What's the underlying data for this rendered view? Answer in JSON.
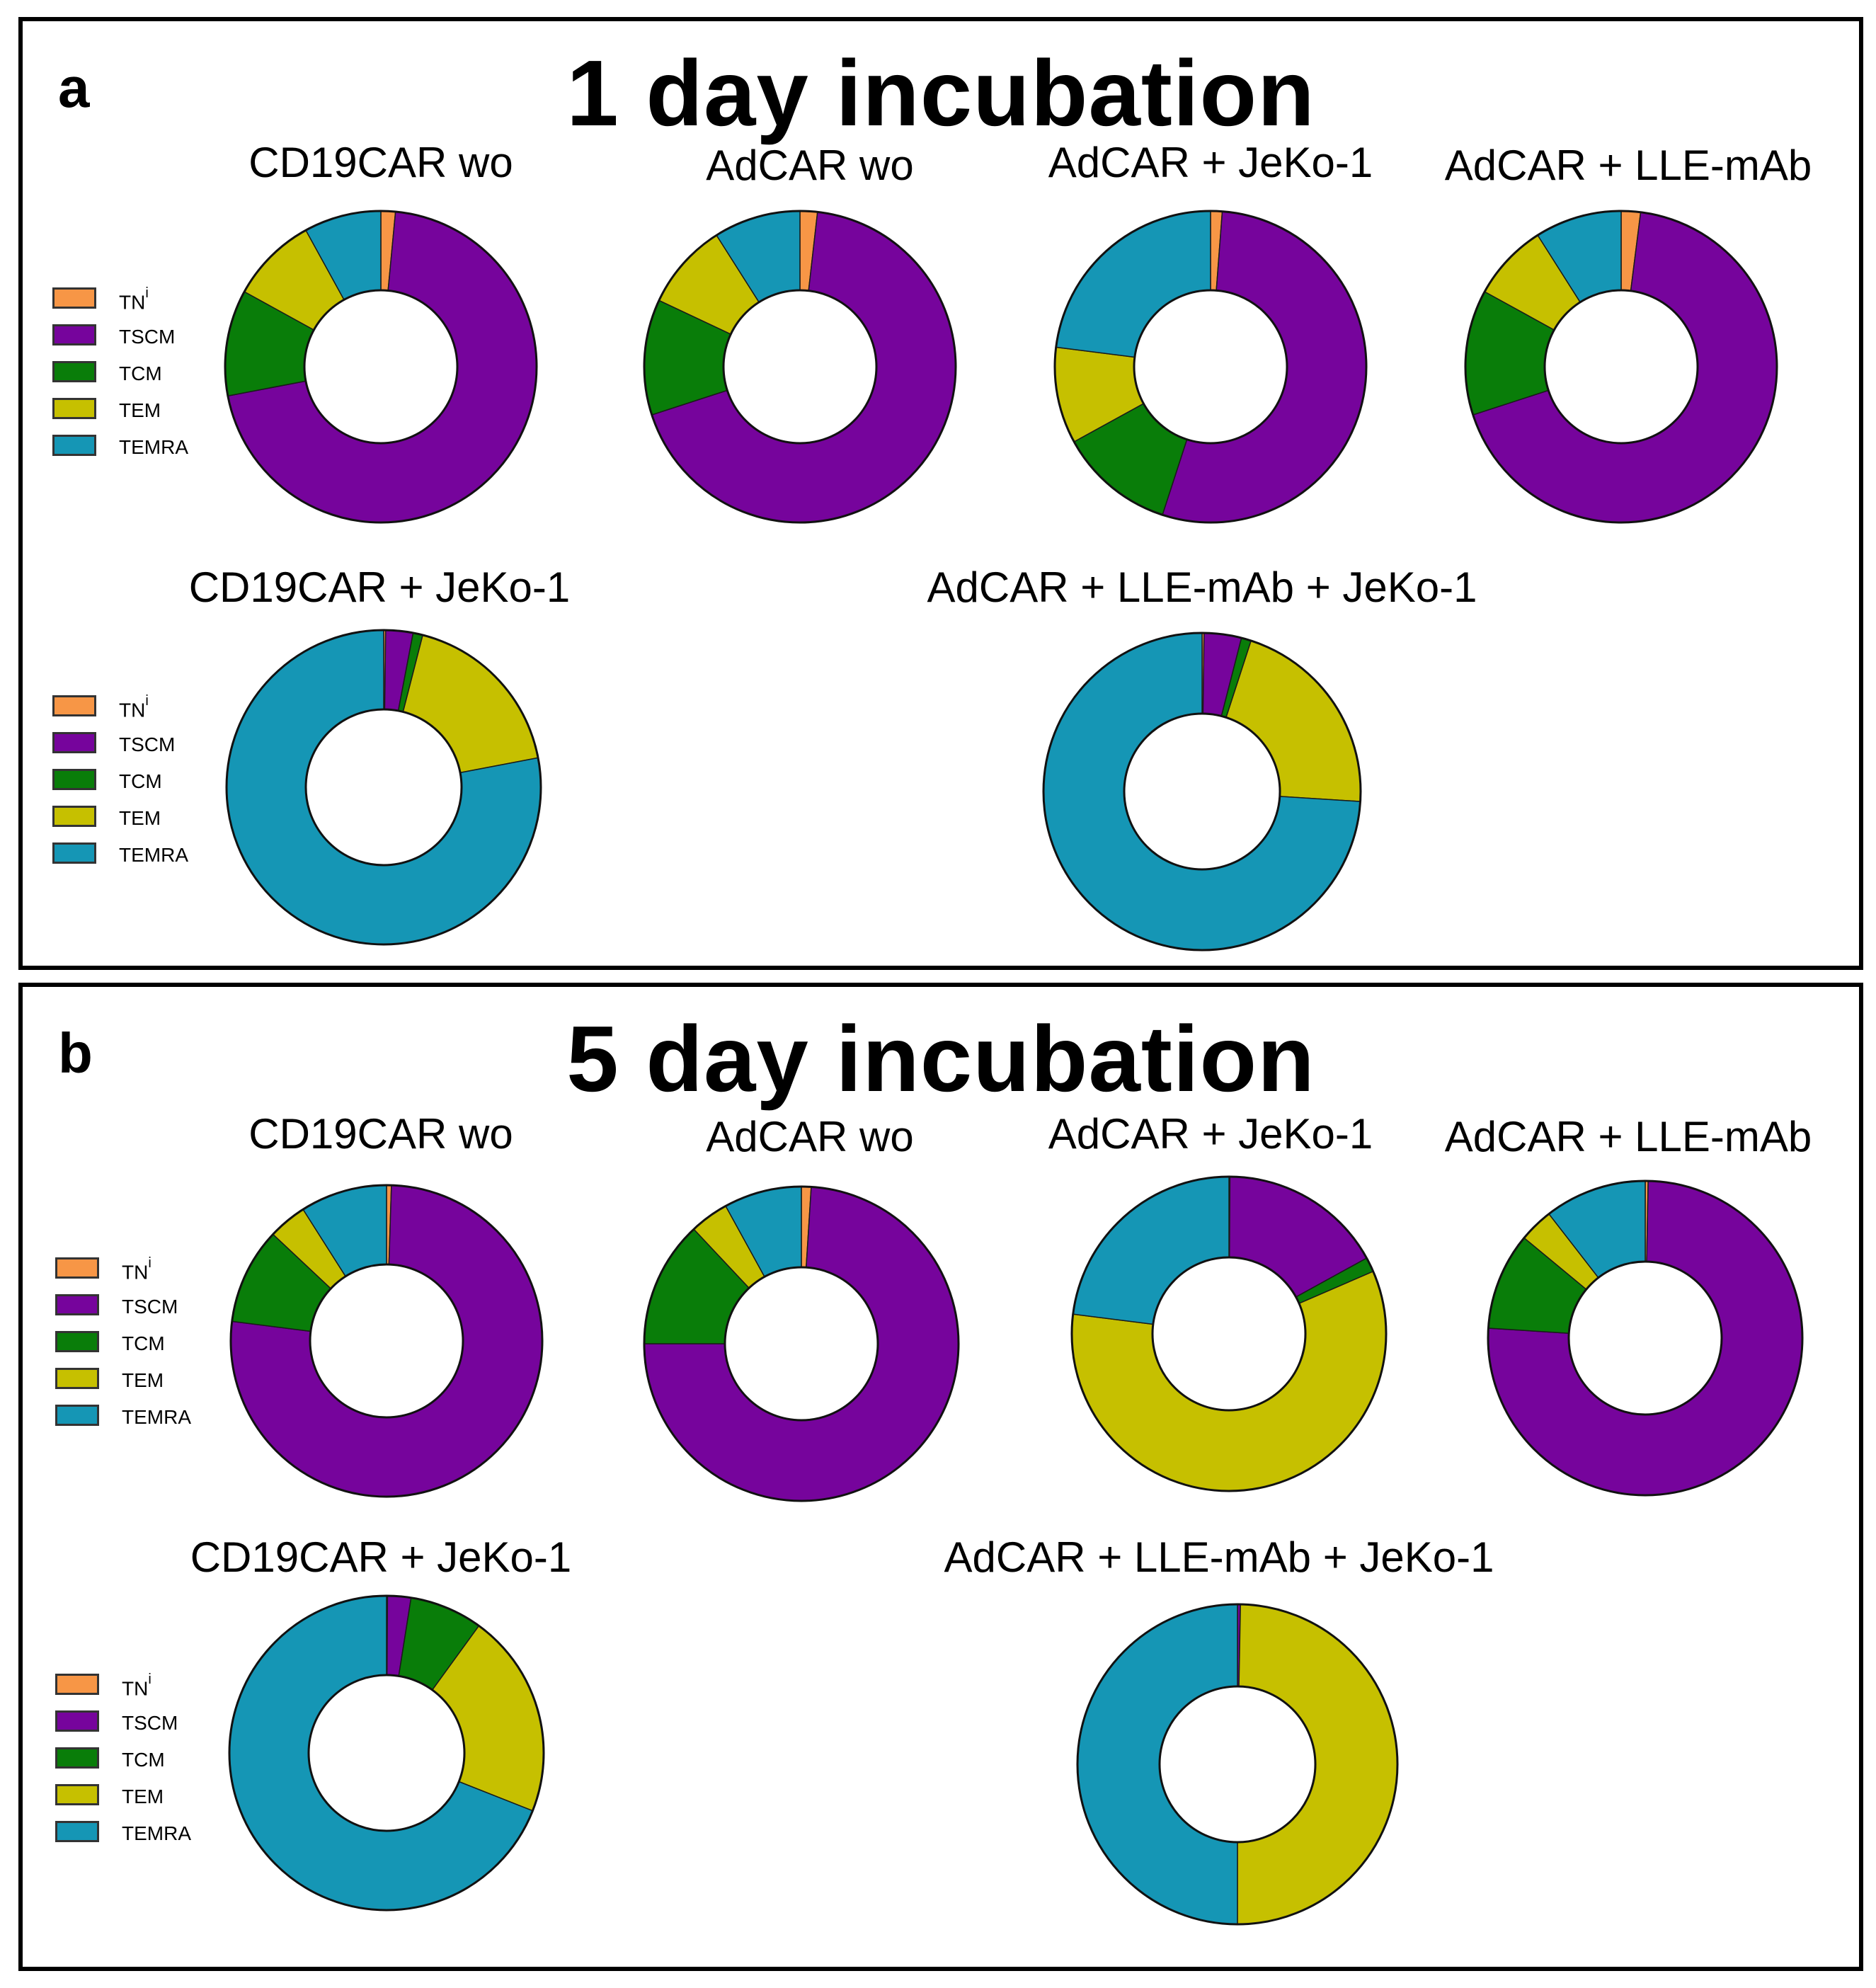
{
  "figure": {
    "colors": {
      "TNi": "#F79646",
      "TSCM": "#76049C",
      "TCM": "#097D09",
      "TEM": "#C6C000",
      "TEMRA": "#1596B5"
    }
  },
  "panels": [
    {
      "letter": "a",
      "title": "1 day incubation",
      "legend": [
        {
          "key": "TNi",
          "label_main": "TN",
          "label_sup": "i"
        },
        {
          "key": "TSCM",
          "label_main": "TSCM",
          "label_sup": ""
        },
        {
          "key": "TCM",
          "label_main": "TCM",
          "label_sup": ""
        },
        {
          "key": "TEM",
          "label_main": "TEM",
          "label_sup": ""
        },
        {
          "key": "TEMRA",
          "label_main": "TEMRA",
          "label_sup": ""
        }
      ]
    },
    {
      "letter": "b",
      "title": "5 day incubation",
      "legend": [
        {
          "key": "TNi",
          "label_main": "TN",
          "label_sup": "i"
        },
        {
          "key": "TSCM",
          "label_main": "TSCM",
          "label_sup": ""
        },
        {
          "key": "TCM",
          "label_main": "TCM",
          "label_sup": ""
        },
        {
          "key": "TEM",
          "label_main": "TEM",
          "label_sup": ""
        },
        {
          "key": "TEMRA",
          "label_main": "TEMRA",
          "label_sup": ""
        }
      ]
    }
  ],
  "chart_data": [
    {
      "type": "pie",
      "panel": "a",
      "title": "CD19CAR wo",
      "categories": [
        "TNi",
        "TSCM",
        "TCM",
        "TEM",
        "TEMRA"
      ],
      "values": [
        1.5,
        70.5,
        11,
        9,
        8
      ]
    },
    {
      "type": "pie",
      "panel": "a",
      "title": "AdCAR wo",
      "categories": [
        "TNi",
        "TSCM",
        "TCM",
        "TEM",
        "TEMRA"
      ],
      "values": [
        1.8,
        68.2,
        12,
        9,
        9
      ]
    },
    {
      "type": "pie",
      "panel": "a",
      "title": "AdCAR + JeKo-1",
      "categories": [
        "TNi",
        "TSCM",
        "TCM",
        "TEM",
        "TEMRA"
      ],
      "values": [
        1.2,
        53.8,
        12,
        10,
        23
      ]
    },
    {
      "type": "pie",
      "panel": "a",
      "title": "AdCAR + LLE-mAb",
      "categories": [
        "TNi",
        "TSCM",
        "TCM",
        "TEM",
        "TEMRA"
      ],
      "values": [
        2,
        68,
        13,
        8,
        9
      ]
    },
    {
      "type": "pie",
      "panel": "a",
      "title": "CD19CAR + JeKo-1",
      "categories": [
        "TNi",
        "TSCM",
        "TCM",
        "TEM",
        "TEMRA"
      ],
      "values": [
        0.2,
        2.8,
        1,
        18,
        78
      ]
    },
    {
      "type": "pie",
      "panel": "a",
      "title": "AdCAR + LLE-mAb + JeKo-1",
      "categories": [
        "TNi",
        "TSCM",
        "TCM",
        "TEM",
        "TEMRA"
      ],
      "values": [
        0.2,
        3.8,
        1,
        21,
        74
      ]
    },
    {
      "type": "pie",
      "panel": "b",
      "title": "CD19CAR wo",
      "categories": [
        "TNi",
        "TSCM",
        "TCM",
        "TEM",
        "TEMRA"
      ],
      "values": [
        0.5,
        76.5,
        10,
        4,
        9
      ]
    },
    {
      "type": "pie",
      "panel": "b",
      "title": "AdCAR wo",
      "categories": [
        "TNi",
        "TSCM",
        "TCM",
        "TEM",
        "TEMRA"
      ],
      "values": [
        1,
        74,
        13,
        4,
        8
      ]
    },
    {
      "type": "pie",
      "panel": "b",
      "title": "AdCAR + JeKo-1",
      "categories": [
        "TNi",
        "TSCM",
        "TCM",
        "TEM",
        "TEMRA"
      ],
      "values": [
        0.1,
        16.9,
        1.5,
        58.5,
        23
      ]
    },
    {
      "type": "pie",
      "panel": "b",
      "title": "AdCAR + LLE-mAb",
      "categories": [
        "TNi",
        "TSCM",
        "TCM",
        "TEM",
        "TEMRA"
      ],
      "values": [
        0.3,
        75.7,
        10,
        3.5,
        10.5
      ]
    },
    {
      "type": "pie",
      "panel": "b",
      "title": "CD19CAR + JeKo-1",
      "categories": [
        "TNi",
        "TSCM",
        "TCM",
        "TEM",
        "TEMRA"
      ],
      "values": [
        0.1,
        2.4,
        7.5,
        21,
        69
      ]
    },
    {
      "type": "pie",
      "panel": "b",
      "title": "AdCAR + LLE-mAb + JeKo-1",
      "categories": [
        "TNi",
        "TSCM",
        "TCM",
        "TEM",
        "TEMRA"
      ],
      "values": [
        0,
        0.3,
        0,
        49.7,
        50
      ]
    }
  ]
}
